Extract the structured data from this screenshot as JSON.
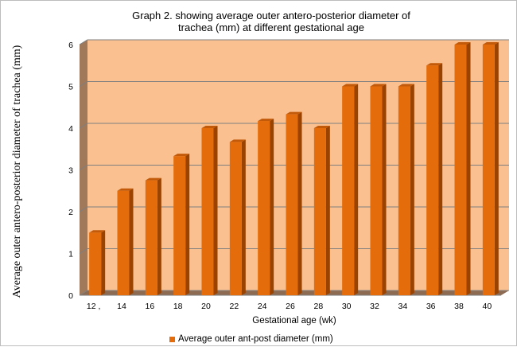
{
  "chart_data": {
    "type": "bar",
    "title": "Graph 2. showing average  outer antero-posterior diameter of trachea (mm) at different gestational age",
    "title_lines": [
      "Graph 2. showing average  outer antero-posterior diameter of",
      "trachea (mm) at different gestational age"
    ],
    "xlabel": "Gestational age (wk)",
    "ylabel": "Average  outer antero-posterior diameter of trachea (mm)",
    "categories": [
      "12 ,",
      "14",
      "16",
      "18",
      "20",
      "22",
      "24",
      "26",
      "28",
      "30",
      "32",
      "34",
      "36",
      "38",
      "40"
    ],
    "series": [
      {
        "name": "Average outer ant-post diameter (mm)",
        "values": [
          1.5,
          2.5,
          2.75,
          3.33,
          4.0,
          3.67,
          4.17,
          4.33,
          4.0,
          5.0,
          5.0,
          5.0,
          5.5,
          6.0,
          6.0
        ]
      }
    ],
    "ylim": [
      0,
      6
    ],
    "yticks": [
      0,
      1,
      2,
      3,
      4,
      5,
      6
    ],
    "grid": true,
    "legend_position": "bottom",
    "colors": {
      "bar_front": "#e46c0a",
      "bar_side": "#9a4200",
      "bar_top": "#c25a0a",
      "plot_wall": "#fac090",
      "plot_floor": "#8c6b52",
      "left_wall": "#a0785a",
      "grid": "#7f7f7f"
    }
  }
}
